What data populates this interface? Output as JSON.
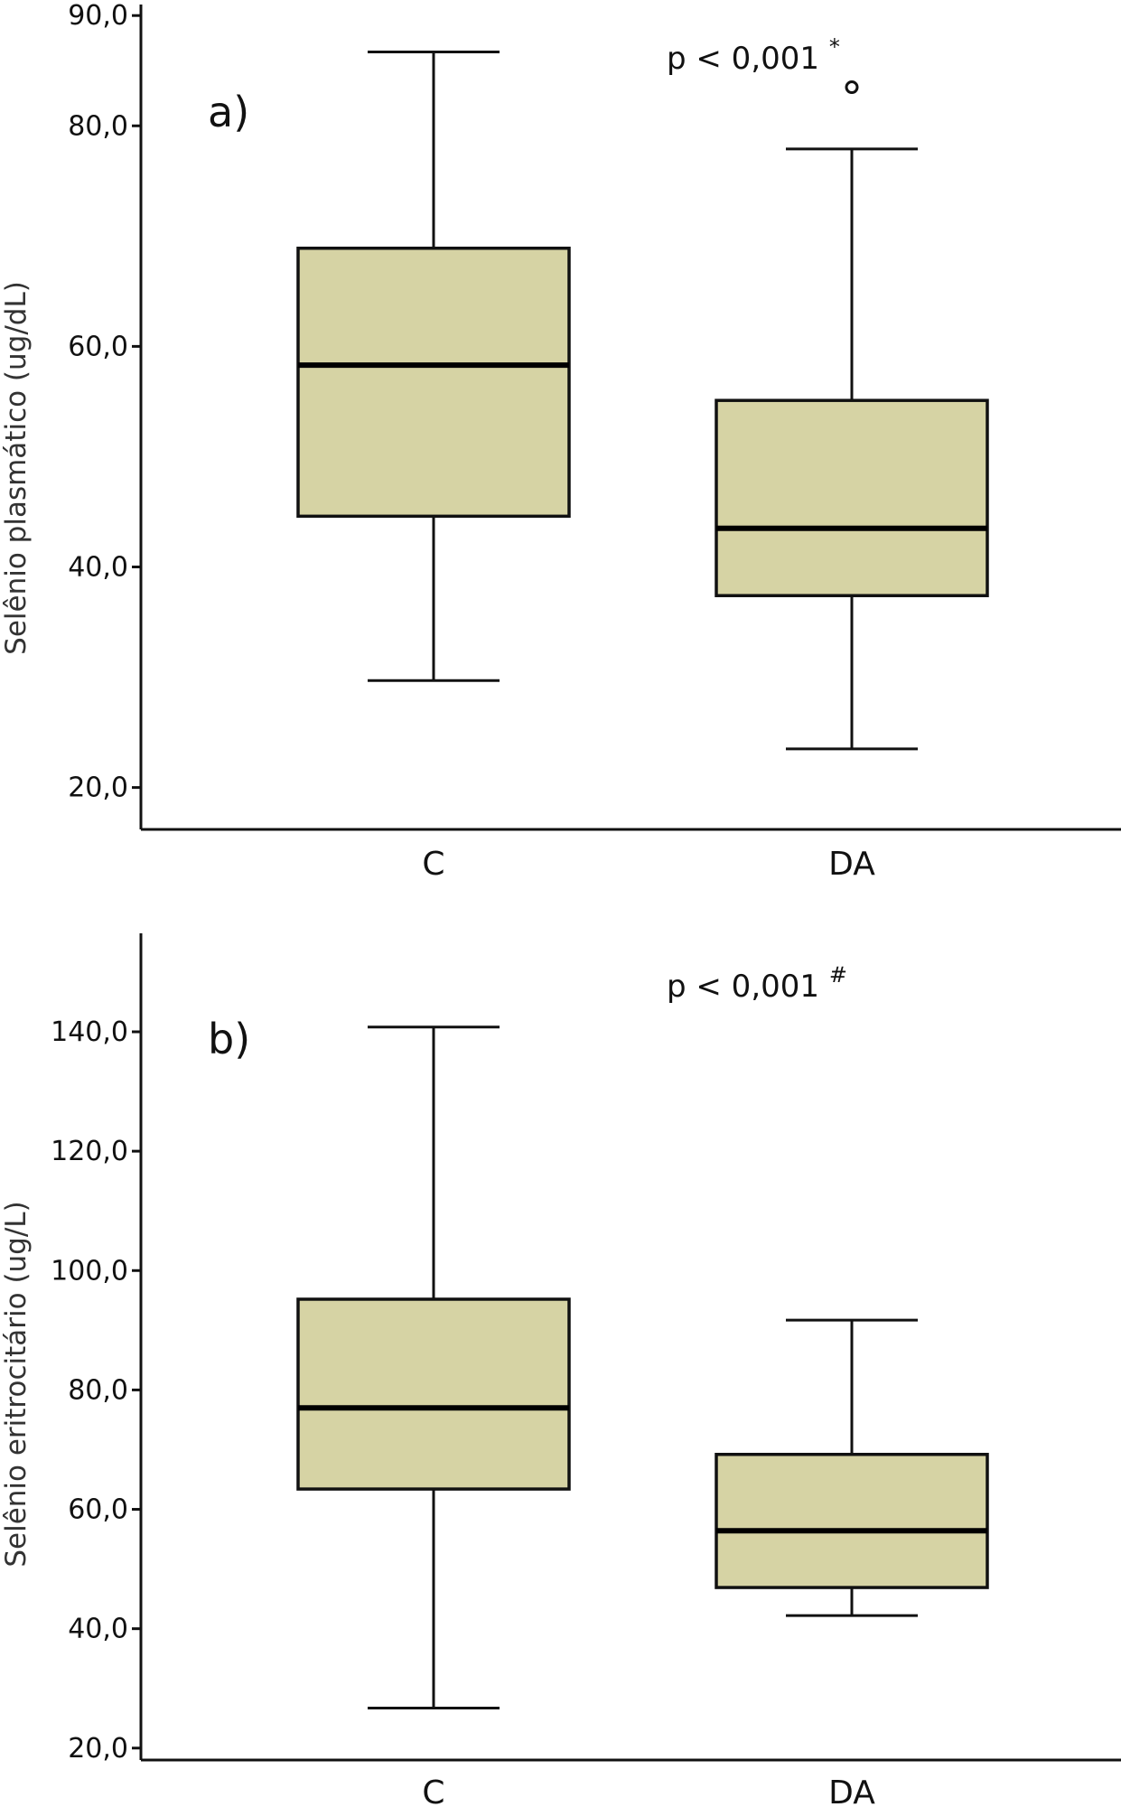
{
  "chart_data": [
    {
      "type": "boxplot",
      "panel_label": "a)",
      "ylabel": "Selênio plasmático (ug/dL)",
      "ylim": [
        16.2,
        91.0
      ],
      "yticks": [
        20,
        40,
        60,
        80,
        90
      ],
      "ytick_labels": [
        "20,0",
        "40,0",
        "60,0",
        "80,0",
        "90,0"
      ],
      "categories": [
        "C",
        "DA"
      ],
      "annotation": {
        "text": "p < 0,001",
        "superscript": "*"
      },
      "fill_color": "#d6d3a4",
      "boxes": [
        {
          "category": "C",
          "whisker_low": 29.7,
          "q1": 44.6,
          "median": 58.3,
          "q3": 68.9,
          "whisker_high": 86.7,
          "outliers": []
        },
        {
          "category": "DA",
          "whisker_low": 23.5,
          "q1": 37.4,
          "median": 43.5,
          "q3": 55.1,
          "whisker_high": 77.9,
          "outliers": [
            83.5
          ]
        }
      ]
    },
    {
      "type": "boxplot",
      "panel_label": "b)",
      "ylabel": "Selênio eritrocitário (ug/L)",
      "ylim": [
        18.0,
        156.5
      ],
      "yticks": [
        20,
        40,
        60,
        80,
        100,
        120,
        140
      ],
      "ytick_labels": [
        "20,0",
        "40,0",
        "60,0",
        "80,0",
        "100,0",
        "120,0",
        "140,0"
      ],
      "categories": [
        "C",
        "DA"
      ],
      "annotation": {
        "text": "p < 0,001",
        "superscript": "#"
      },
      "fill_color": "#d6d3a4",
      "boxes": [
        {
          "category": "C",
          "whisker_low": 26.7,
          "q1": 63.4,
          "median": 77.0,
          "q3": 95.2,
          "whisker_high": 140.8,
          "outliers": []
        },
        {
          "category": "DA",
          "whisker_low": 42.2,
          "q1": 46.9,
          "median": 56.4,
          "q3": 69.2,
          "whisker_high": 91.7,
          "outliers": []
        }
      ]
    }
  ]
}
